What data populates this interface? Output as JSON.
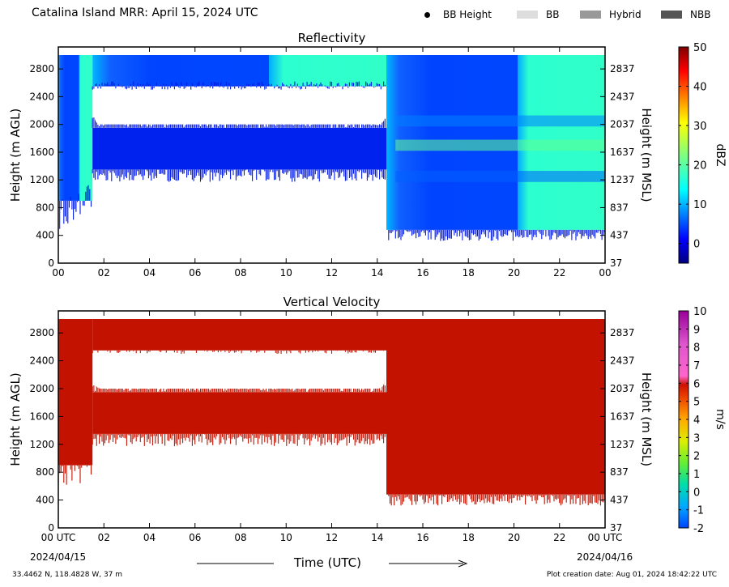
{
  "figure": {
    "title": "Catalina Island MRR:  April 15, 2024 UTC",
    "legend": [
      {
        "label": "BB Height",
        "kind": "dot",
        "color": "#000000"
      },
      {
        "label": "BB",
        "kind": "swatch",
        "color": "#dddddd"
      },
      {
        "label": "Hybrid",
        "kind": "swatch",
        "color": "#999999"
      },
      {
        "label": "NBB",
        "kind": "swatch",
        "color": "#555555"
      }
    ],
    "x_axis_label": "Time (UTC)",
    "x_start_date": "2024/04/15",
    "x_end_date": "2024/04/16",
    "location": "33.4462 N, 118.4828 W, 37 m",
    "plot_creation": "Plot creation date: Aug 01, 2024 18:42:22 UTC"
  },
  "chart_data": [
    {
      "type": "heatmap",
      "title": "Reflectivity",
      "xlabel": "Time (UTC)",
      "ylabel": "Height (m AGL)",
      "y2label": "Height (m MSL)",
      "colorbar_label": "dBZ",
      "x_ticks": [
        "00",
        "02",
        "04",
        "06",
        "08",
        "10",
        "12",
        "14",
        "16",
        "18",
        "20",
        "22",
        "00"
      ],
      "xlim_hours": [
        0,
        24
      ],
      "y_ticks": [
        0,
        400,
        800,
        1200,
        1600,
        2000,
        2400,
        2800
      ],
      "y2_ticks": [
        37,
        437,
        837,
        1237,
        1637,
        2037,
        2437,
        2837
      ],
      "ylim": [
        0,
        3000
      ],
      "colorbar_ticks": [
        0,
        10,
        20,
        30,
        40,
        50
      ],
      "clim": [
        -5,
        50
      ],
      "colormap": "jet",
      "description_regions": [
        {
          "t_start": 0.0,
          "t_end": 1.5,
          "base_m": 900,
          "top_m": 3000,
          "dbz": 8
        },
        {
          "t_start": 1.5,
          "t_end": 14.4,
          "base_m": 1350,
          "top_m": 2550,
          "gap_bottom_m": 1950,
          "gap_top_m": 2550,
          "dbz": 0
        },
        {
          "t_start": 1.5,
          "t_end": 14.4,
          "base_m": 2500,
          "top_m": 3000,
          "dbz": 3
        },
        {
          "t_start": 14.4,
          "t_end": 24.0,
          "base_m": 450,
          "top_m": 3000,
          "dbz": 12
        }
      ]
    },
    {
      "type": "heatmap",
      "title": "Vertical Velocity",
      "xlabel": "Time (UTC)",
      "ylabel": "Height (m AGL)",
      "y2label": "Height (m MSL)",
      "colorbar_label": "m/s",
      "x_ticks": [
        "00 UTC",
        "02",
        "04",
        "06",
        "08",
        "10",
        "12",
        "14",
        "16",
        "18",
        "20",
        "22",
        "00 UTC"
      ],
      "xlim_hours": [
        0,
        24
      ],
      "y_ticks": [
        0,
        400,
        800,
        1200,
        1600,
        2000,
        2400,
        2800
      ],
      "y2_ticks": [
        37,
        437,
        837,
        1237,
        1637,
        2037,
        2437,
        2837
      ],
      "ylim": [
        0,
        3000
      ],
      "colorbar_ticks": [
        -2,
        -1,
        0,
        1,
        2,
        3,
        4,
        5,
        6,
        7,
        8,
        9,
        10
      ],
      "clim": [
        -2,
        10
      ],
      "dominant_value_m_s": 6
    }
  ]
}
